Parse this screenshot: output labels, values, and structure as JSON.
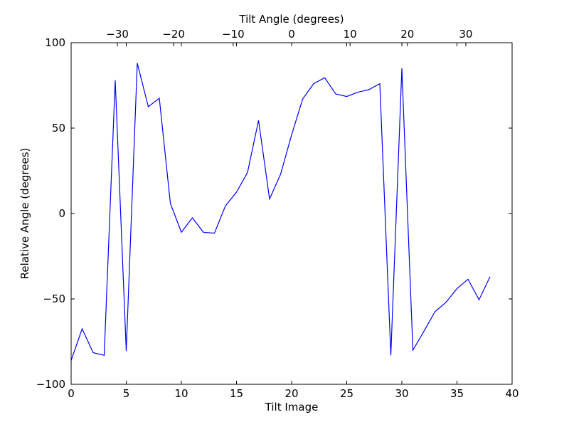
{
  "chart_data": {
    "type": "line",
    "xlabel": "Tilt Image",
    "ylabel": "Relative Angle (degrees)",
    "top_xlabel": "Tilt Angle (degrees)",
    "xlim": [
      0,
      40
    ],
    "ylim": [
      -100,
      100
    ],
    "x_ticks": [
      0,
      5,
      10,
      15,
      20,
      25,
      30,
      35,
      40
    ],
    "x_tick_labels": [
      "0",
      "5",
      "10",
      "15",
      "20",
      "25",
      "30",
      "35",
      "40"
    ],
    "y_ticks": [
      -100,
      -50,
      0,
      50,
      100
    ],
    "y_tick_labels": [
      "−100",
      "−50",
      "0",
      "50",
      "100"
    ],
    "top_x_ticks": [
      {
        "at": 4.2,
        "label": "−30"
      },
      {
        "at": 9.3,
        "label": "−20"
      },
      {
        "at": 14.7,
        "label": "−10"
      },
      {
        "at": 20.0,
        "label": "0"
      },
      {
        "at": 25.3,
        "label": "10"
      },
      {
        "at": 30.5,
        "label": "20"
      },
      {
        "at": 35.8,
        "label": "30"
      }
    ],
    "grid": false,
    "line_color": "#0000ff",
    "series": [
      {
        "x": [
          0,
          1,
          2,
          3,
          4,
          5,
          6,
          7,
          8,
          9,
          10,
          11,
          12,
          13,
          14,
          15,
          16,
          17,
          18,
          19,
          20,
          21,
          22,
          23,
          24,
          25,
          26,
          27,
          28,
          29,
          30,
          31,
          32,
          33,
          34,
          35,
          36,
          37,
          38
        ],
        "y": [
          -86,
          -67.5,
          -81.5,
          -83,
          78,
          -80.5,
          88,
          62.5,
          67.5,
          6,
          -11,
          -2.5,
          -11,
          -11.5,
          4.5,
          12.5,
          24,
          54.5,
          8.5,
          23,
          46,
          67,
          76,
          79.5,
          70,
          68.5,
          71,
          72.5,
          76,
          -83,
          85,
          -80,
          -69,
          -57.5,
          -52,
          -44,
          -38.5,
          -50.5,
          -37
        ]
      }
    ]
  }
}
